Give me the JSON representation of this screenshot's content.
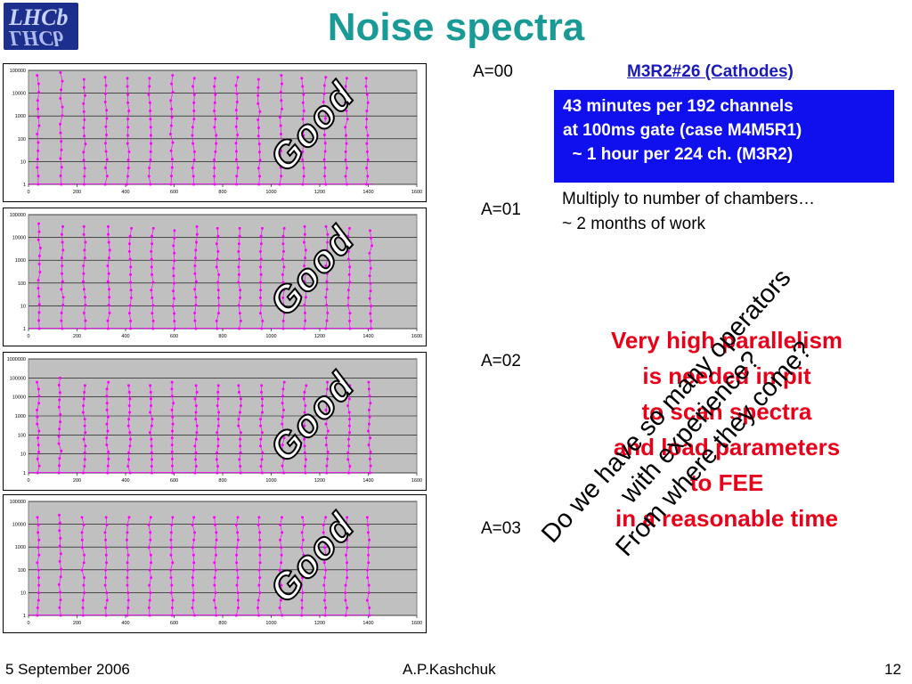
{
  "logo": {
    "text": "LHCb"
  },
  "title": "Noise spectra",
  "header": {
    "chamber_label": "M3R2#26 (Cathodes)"
  },
  "info_box": {
    "lines": [
      "43 minutes per 192 channels",
      "at 100ms gate (case M4M5R1)",
      "  ~ 1 hour per 224 ch. (M3R2)"
    ]
  },
  "multiply_note": {
    "lines": [
      "Multiply to number of chambers…",
      "~ 2 months of work"
    ]
  },
  "parallelism_note": {
    "lines": [
      "Very high parallelism",
      "is needed in pit",
      "to scan spectra",
      "and load parameters",
      "to FEE",
      "in a reasonable time"
    ]
  },
  "operators_note": {
    "lines": [
      "Do we have so many operators",
      "with experience?",
      "From where they come?"
    ]
  },
  "stamp_text": "Good",
  "footer": {
    "date": "5 September 2006",
    "author": "A.P.Kashchuk",
    "page": "12"
  },
  "colors": {
    "title": "#1a9a96",
    "marker": "#ff00ff",
    "plot_bg": "#c0c0c0",
    "info_box_bg": "#1010ee",
    "alert_text": "#e8001a",
    "link": "#1a1ab8"
  },
  "chart_data": [
    {
      "type": "scatter",
      "label": "A=00",
      "y_scale": "log",
      "ylim": [
        1,
        100000
      ],
      "y_ticks": [
        "100000",
        "10000",
        "1000",
        "100",
        "10",
        "1"
      ],
      "x_ticks": [
        "0",
        "200",
        "400",
        "600",
        "800",
        "1000",
        "1200",
        "1400",
        "1600"
      ],
      "xlim": [
        0,
        1600
      ],
      "peaks": [
        {
          "x": 40,
          "y": 60000
        },
        {
          "x": 135,
          "y": 80000
        },
        {
          "x": 230,
          "y": 40000
        },
        {
          "x": 320,
          "y": 50000
        },
        {
          "x": 410,
          "y": 45000
        },
        {
          "x": 500,
          "y": 45000
        },
        {
          "x": 590,
          "y": 60000
        },
        {
          "x": 680,
          "y": 45000
        },
        {
          "x": 770,
          "y": 45000
        },
        {
          "x": 860,
          "y": 50000
        },
        {
          "x": 950,
          "y": 40000
        },
        {
          "x": 1040,
          "y": 60000
        },
        {
          "x": 1130,
          "y": 45000
        },
        {
          "x": 1220,
          "y": 50000
        },
        {
          "x": 1310,
          "y": 45000
        },
        {
          "x": 1395,
          "y": 45000
        }
      ]
    },
    {
      "type": "scatter",
      "label": "A=01",
      "y_scale": "log",
      "ylim": [
        1,
        100000
      ],
      "y_ticks": [
        "100000",
        "10000",
        "1000",
        "100",
        "10",
        "1"
      ],
      "x_ticks": [
        "0",
        "200",
        "400",
        "600",
        "800",
        "1000",
        "1200",
        "1400",
        "1600"
      ],
      "xlim": [
        0,
        1600
      ],
      "peaks": [
        {
          "x": 45,
          "y": 40000
        },
        {
          "x": 140,
          "y": 30000
        },
        {
          "x": 230,
          "y": 30000
        },
        {
          "x": 330,
          "y": 30000
        },
        {
          "x": 420,
          "y": 25000
        },
        {
          "x": 510,
          "y": 25000
        },
        {
          "x": 600,
          "y": 20000
        },
        {
          "x": 690,
          "y": 30000
        },
        {
          "x": 780,
          "y": 25000
        },
        {
          "x": 870,
          "y": 25000
        },
        {
          "x": 960,
          "y": 25000
        },
        {
          "x": 1050,
          "y": 25000
        },
        {
          "x": 1140,
          "y": 30000
        },
        {
          "x": 1230,
          "y": 30000
        },
        {
          "x": 1320,
          "y": 25000
        },
        {
          "x": 1410,
          "y": 20000
        }
      ]
    },
    {
      "type": "scatter",
      "label": "A=02",
      "y_scale": "log",
      "ylim": [
        1,
        1000000
      ],
      "y_ticks": [
        "1000000",
        "100000",
        "10000",
        "1000",
        "100",
        "10",
        "1"
      ],
      "x_ticks": [
        "0",
        "200",
        "400",
        "600",
        "800",
        "1000",
        "1200",
        "1400",
        "1600"
      ],
      "xlim": [
        0,
        1600
      ],
      "peaks": [
        {
          "x": 40,
          "y": 60000
        },
        {
          "x": 130,
          "y": 100000
        },
        {
          "x": 230,
          "y": 40000
        },
        {
          "x": 325,
          "y": 60000
        },
        {
          "x": 415,
          "y": 40000
        },
        {
          "x": 505,
          "y": 40000
        },
        {
          "x": 595,
          "y": 60000
        },
        {
          "x": 690,
          "y": 40000
        },
        {
          "x": 780,
          "y": 40000
        },
        {
          "x": 870,
          "y": 40000
        },
        {
          "x": 960,
          "y": 40000
        },
        {
          "x": 1050,
          "y": 60000
        },
        {
          "x": 1140,
          "y": 40000
        },
        {
          "x": 1230,
          "y": 60000
        },
        {
          "x": 1320,
          "y": 40000
        },
        {
          "x": 1405,
          "y": 60000
        }
      ]
    },
    {
      "type": "scatter",
      "label": "A=03",
      "y_scale": "log",
      "ylim": [
        1,
        100000
      ],
      "y_ticks": [
        "100000",
        "10000",
        "1000",
        "100",
        "10",
        "1"
      ],
      "x_ticks": [
        "0",
        "200",
        "400",
        "600",
        "800",
        "1000",
        "1200",
        "1400",
        "1600"
      ],
      "xlim": [
        0,
        1600
      ],
      "peaks": [
        {
          "x": 40,
          "y": 20000
        },
        {
          "x": 130,
          "y": 25000
        },
        {
          "x": 225,
          "y": 20000
        },
        {
          "x": 320,
          "y": 20000
        },
        {
          "x": 410,
          "y": 20000
        },
        {
          "x": 500,
          "y": 20000
        },
        {
          "x": 590,
          "y": 20000
        },
        {
          "x": 680,
          "y": 20000
        },
        {
          "x": 770,
          "y": 20000
        },
        {
          "x": 860,
          "y": 20000
        },
        {
          "x": 950,
          "y": 20000
        },
        {
          "x": 1040,
          "y": 20000
        },
        {
          "x": 1130,
          "y": 20000
        },
        {
          "x": 1220,
          "y": 20000
        },
        {
          "x": 1310,
          "y": 20000
        },
        {
          "x": 1400,
          "y": 20000
        }
      ]
    }
  ]
}
